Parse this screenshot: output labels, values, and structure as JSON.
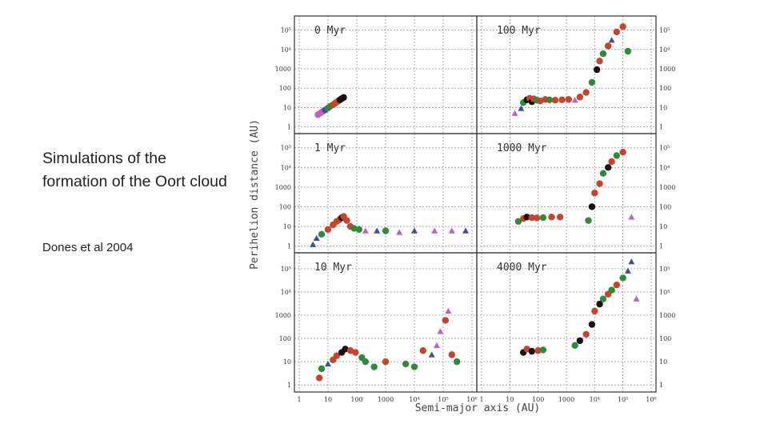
{
  "slide": {
    "caption": "Simulations of the formation of the Oort cloud",
    "credit": "Dones et al 2004"
  },
  "colors": {
    "red": "#c8432b",
    "green": "#2f8a3b",
    "black": "#1a1010",
    "blue": "#3b4f9a",
    "magenta": "#c060c0",
    "grid": "#9a9a9a",
    "frame": "#333333"
  },
  "chart_data": {
    "type": "scatter",
    "xlabel": "Semi-major axis (AU)",
    "ylabel": "Perihelion distance (AU)",
    "x_scale": "log",
    "y_scale": "log",
    "xlim": [
      1,
      1000000
    ],
    "ylim": [
      0.8,
      300000
    ],
    "grid": true,
    "x_ticks": [
      "1",
      "10",
      "100",
      "1000",
      "10⁴",
      "10⁵",
      "10⁶"
    ],
    "y_ticks": [
      "1",
      "10",
      "100",
      "1000",
      "10⁴",
      "10⁵"
    ],
    "panels": [
      {
        "title": "0 Myr",
        "points": [
          {
            "a": 4.5,
            "q": 4.3,
            "c": "magenta",
            "m": "o"
          },
          {
            "a": 5.5,
            "q": 5.2,
            "c": "magenta",
            "m": "o"
          },
          {
            "a": 6.5,
            "q": 6.2,
            "c": "magenta",
            "m": "o"
          },
          {
            "a": 8,
            "q": 7.5,
            "c": "blue",
            "m": "o"
          },
          {
            "a": 10,
            "q": 9.5,
            "c": "green",
            "m": "o"
          },
          {
            "a": 12,
            "q": 11.5,
            "c": "green",
            "m": "o"
          },
          {
            "a": 15,
            "q": 14,
            "c": "red",
            "m": "o"
          },
          {
            "a": 18,
            "q": 17,
            "c": "red",
            "m": "o"
          },
          {
            "a": 22,
            "q": 21,
            "c": "red",
            "m": "o"
          },
          {
            "a": 26,
            "q": 25,
            "c": "black",
            "m": "o"
          },
          {
            "a": 30,
            "q": 29,
            "c": "black",
            "m": "o"
          },
          {
            "a": 35,
            "q": 33,
            "c": "black",
            "m": "o"
          }
        ]
      },
      {
        "title": "100 Myr",
        "points": [
          {
            "a": 15,
            "q": 5,
            "c": "magenta",
            "m": "^"
          },
          {
            "a": 25,
            "q": 9,
            "c": "blue",
            "m": "^"
          },
          {
            "a": 30,
            "q": 18,
            "c": "green",
            "m": "o"
          },
          {
            "a": 40,
            "q": 25,
            "c": "black",
            "m": "o"
          },
          {
            "a": 50,
            "q": 30,
            "c": "red",
            "m": "o"
          },
          {
            "a": 60,
            "q": 20,
            "c": "black",
            "m": "o"
          },
          {
            "a": 70,
            "q": 28,
            "c": "red",
            "m": "o"
          },
          {
            "a": 90,
            "q": 24,
            "c": "green",
            "m": "o"
          },
          {
            "a": 120,
            "q": 22,
            "c": "red",
            "m": "o"
          },
          {
            "a": 180,
            "q": 26,
            "c": "red",
            "m": "o"
          },
          {
            "a": 250,
            "q": 25,
            "c": "green",
            "m": "o"
          },
          {
            "a": 400,
            "q": 24,
            "c": "red",
            "m": "o"
          },
          {
            "a": 700,
            "q": 25,
            "c": "red",
            "m": "o"
          },
          {
            "a": 1200,
            "q": 26,
            "c": "red",
            "m": "o"
          },
          {
            "a": 2000,
            "q": 24,
            "c": "magenta",
            "m": "^"
          },
          {
            "a": 3000,
            "q": 35,
            "c": "red",
            "m": "o"
          },
          {
            "a": 5000,
            "q": 60,
            "c": "red",
            "m": "o"
          },
          {
            "a": 8000,
            "q": 200,
            "c": "green",
            "m": "o"
          },
          {
            "a": 12000,
            "q": 900,
            "c": "black",
            "m": "o"
          },
          {
            "a": 15000,
            "q": 2500,
            "c": "red",
            "m": "o"
          },
          {
            "a": 20000,
            "q": 6000,
            "c": "green",
            "m": "o"
          },
          {
            "a": 30000,
            "q": 15000,
            "c": "red",
            "m": "o"
          },
          {
            "a": 40000,
            "q": 30000,
            "c": "blue",
            "m": "^"
          },
          {
            "a": 60000,
            "q": 80000,
            "c": "red",
            "m": "o"
          },
          {
            "a": 100000,
            "q": 150000,
            "c": "red",
            "m": "o"
          },
          {
            "a": 150000,
            "q": 8000,
            "c": "green",
            "m": "o"
          }
        ]
      },
      {
        "title": "1 Myr",
        "points": [
          {
            "a": 3,
            "q": 1.2,
            "c": "blue",
            "m": "^"
          },
          {
            "a": 4,
            "q": 2.5,
            "c": "blue",
            "m": "^"
          },
          {
            "a": 6,
            "q": 4,
            "c": "green",
            "m": "o"
          },
          {
            "a": 10,
            "q": 7,
            "c": "red",
            "m": "o"
          },
          {
            "a": 15,
            "q": 12,
            "c": "red",
            "m": "o"
          },
          {
            "a": 20,
            "q": 18,
            "c": "red",
            "m": "o"
          },
          {
            "a": 25,
            "q": 22,
            "c": "red",
            "m": "o"
          },
          {
            "a": 30,
            "q": 28,
            "c": "black",
            "m": "o"
          },
          {
            "a": 35,
            "q": 32,
            "c": "red",
            "m": "o"
          },
          {
            "a": 45,
            "q": 20,
            "c": "red",
            "m": "o"
          },
          {
            "a": 60,
            "q": 10,
            "c": "red",
            "m": "o"
          },
          {
            "a": 80,
            "q": 8,
            "c": "green",
            "m": "o"
          },
          {
            "a": 120,
            "q": 7,
            "c": "green",
            "m": "o"
          },
          {
            "a": 200,
            "q": 6,
            "c": "magenta",
            "m": "^"
          },
          {
            "a": 500,
            "q": 6,
            "c": "blue",
            "m": "^"
          },
          {
            "a": 1000,
            "q": 6,
            "c": "green",
            "m": "o"
          },
          {
            "a": 3000,
            "q": 5,
            "c": "magenta",
            "m": "^"
          },
          {
            "a": 10000,
            "q": 6,
            "c": "blue",
            "m": "^"
          },
          {
            "a": 50000,
            "q": 6,
            "c": "magenta",
            "m": "^"
          },
          {
            "a": 200000,
            "q": 6,
            "c": "magenta",
            "m": "^"
          },
          {
            "a": 600000,
            "q": 6,
            "c": "blue",
            "m": "^"
          }
        ]
      },
      {
        "title": "1000 Myr",
        "points": [
          {
            "a": 20,
            "q": 18,
            "c": "green",
            "m": "o"
          },
          {
            "a": 30,
            "q": 25,
            "c": "red",
            "m": "o"
          },
          {
            "a": 40,
            "q": 30,
            "c": "black",
            "m": "o"
          },
          {
            "a": 60,
            "q": 28,
            "c": "red",
            "m": "o"
          },
          {
            "a": 90,
            "q": 27,
            "c": "red",
            "m": "o"
          },
          {
            "a": 150,
            "q": 28,
            "c": "green",
            "m": "o"
          },
          {
            "a": 300,
            "q": 30,
            "c": "red",
            "m": "o"
          },
          {
            "a": 600,
            "q": 30,
            "c": "red",
            "m": "o"
          },
          {
            "a": 6000,
            "q": 20,
            "c": "green",
            "m": "o"
          },
          {
            "a": 8000,
            "q": 100,
            "c": "black",
            "m": "o"
          },
          {
            "a": 10000,
            "q": 500,
            "c": "red",
            "m": "o"
          },
          {
            "a": 15000,
            "q": 1500,
            "c": "red",
            "m": "o"
          },
          {
            "a": 20000,
            "q": 5000,
            "c": "green",
            "m": "o"
          },
          {
            "a": 30000,
            "q": 10000,
            "c": "black",
            "m": "o"
          },
          {
            "a": 40000,
            "q": 20000,
            "c": "red",
            "m": "o"
          },
          {
            "a": 60000,
            "q": 40000,
            "c": "green",
            "m": "o"
          },
          {
            "a": 100000,
            "q": 60000,
            "c": "red",
            "m": "o"
          },
          {
            "a": 200000,
            "q": 30,
            "c": "magenta",
            "m": "^"
          }
        ]
      },
      {
        "title": "10 Myr",
        "points": [
          {
            "a": 5,
            "q": 2,
            "c": "red",
            "m": "o"
          },
          {
            "a": 6,
            "q": 5,
            "c": "green",
            "m": "o"
          },
          {
            "a": 10,
            "q": 8,
            "c": "blue",
            "m": "^"
          },
          {
            "a": 15,
            "q": 12,
            "c": "red",
            "m": "o"
          },
          {
            "a": 20,
            "q": 18,
            "c": "red",
            "m": "o"
          },
          {
            "a": 30,
            "q": 25,
            "c": "black",
            "m": "o"
          },
          {
            "a": 40,
            "q": 35,
            "c": "black",
            "m": "o"
          },
          {
            "a": 60,
            "q": 30,
            "c": "red",
            "m": "o"
          },
          {
            "a": 90,
            "q": 25,
            "c": "red",
            "m": "o"
          },
          {
            "a": 150,
            "q": 15,
            "c": "green",
            "m": "o"
          },
          {
            "a": 200,
            "q": 10,
            "c": "green",
            "m": "o"
          },
          {
            "a": 400,
            "q": 6,
            "c": "green",
            "m": "o"
          },
          {
            "a": 1000,
            "q": 10,
            "c": "red",
            "m": "o"
          },
          {
            "a": 5000,
            "q": 8,
            "c": "green",
            "m": "o"
          },
          {
            "a": 10000,
            "q": 6,
            "c": "green",
            "m": "o"
          },
          {
            "a": 20000,
            "q": 30,
            "c": "red",
            "m": "o"
          },
          {
            "a": 40000,
            "q": 20,
            "c": "blue",
            "m": "^"
          },
          {
            "a": 60000,
            "q": 50,
            "c": "magenta",
            "m": "^"
          },
          {
            "a": 80000,
            "q": 200,
            "c": "magenta",
            "m": "^"
          },
          {
            "a": 120000,
            "q": 600,
            "c": "red",
            "m": "o"
          },
          {
            "a": 150000,
            "q": 1500,
            "c": "magenta",
            "m": "^"
          },
          {
            "a": 200000,
            "q": 20,
            "c": "red",
            "m": "o"
          },
          {
            "a": 300000,
            "q": 10,
            "c": "green",
            "m": "o"
          }
        ]
      },
      {
        "title": "4000 Myr",
        "points": [
          {
            "a": 30,
            "q": 25,
            "c": "black",
            "m": "o"
          },
          {
            "a": 40,
            "q": 35,
            "c": "red",
            "m": "o"
          },
          {
            "a": 60,
            "q": 28,
            "c": "black",
            "m": "o"
          },
          {
            "a": 100,
            "q": 30,
            "c": "red",
            "m": "o"
          },
          {
            "a": 150,
            "q": 32,
            "c": "green",
            "m": "o"
          },
          {
            "a": 2000,
            "q": 50,
            "c": "green",
            "m": "o"
          },
          {
            "a": 3000,
            "q": 80,
            "c": "black",
            "m": "o"
          },
          {
            "a": 5000,
            "q": 150,
            "c": "red",
            "m": "o"
          },
          {
            "a": 8000,
            "q": 400,
            "c": "black",
            "m": "o"
          },
          {
            "a": 10000,
            "q": 1500,
            "c": "red",
            "m": "o"
          },
          {
            "a": 15000,
            "q": 3000,
            "c": "black",
            "m": "o"
          },
          {
            "a": 20000,
            "q": 5000,
            "c": "green",
            "m": "o"
          },
          {
            "a": 30000,
            "q": 8000,
            "c": "red",
            "m": "o"
          },
          {
            "a": 40000,
            "q": 12000,
            "c": "green",
            "m": "o"
          },
          {
            "a": 60000,
            "q": 20000,
            "c": "red",
            "m": "o"
          },
          {
            "a": 100000,
            "q": 40000,
            "c": "green",
            "m": "o"
          },
          {
            "a": 150000,
            "q": 80000,
            "c": "blue",
            "m": "^"
          },
          {
            "a": 200000,
            "q": 200000,
            "c": "blue",
            "m": "^"
          },
          {
            "a": 300000,
            "q": 5000,
            "c": "magenta",
            "m": "^"
          }
        ]
      }
    ]
  }
}
